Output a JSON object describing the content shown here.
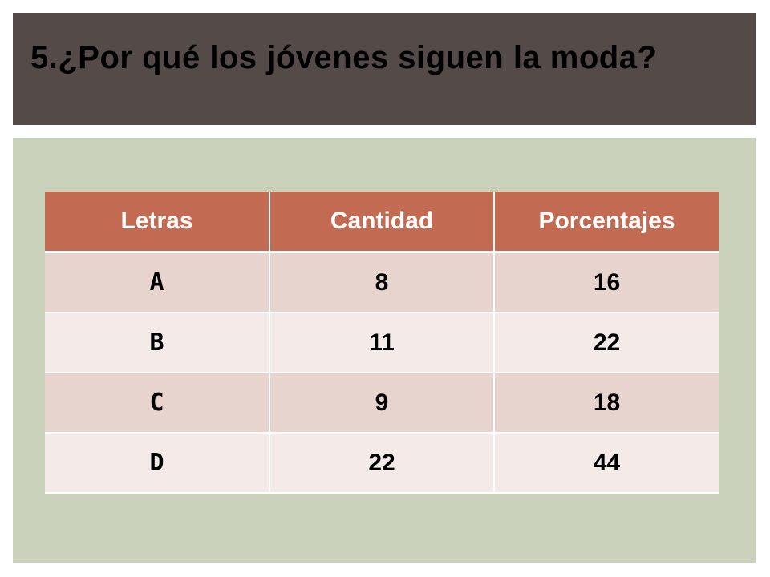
{
  "slide": {
    "title": "5.¿Por qué los jóvenes siguen la moda?"
  },
  "table": {
    "headers": [
      "Letras",
      "Cantidad",
      "Porcentajes"
    ],
    "rows": [
      [
        "A",
        "8",
        "16"
      ],
      [
        "B",
        "11",
        "22"
      ],
      [
        "C",
        "9",
        "18"
      ],
      [
        "D",
        "22",
        "44"
      ]
    ]
  },
  "colors": {
    "title_bar": "#544a48",
    "panel": "#cbd2bb",
    "header": "#c36a52",
    "row_odd": "#e8d4ce",
    "row_even": "#f4eae7"
  }
}
